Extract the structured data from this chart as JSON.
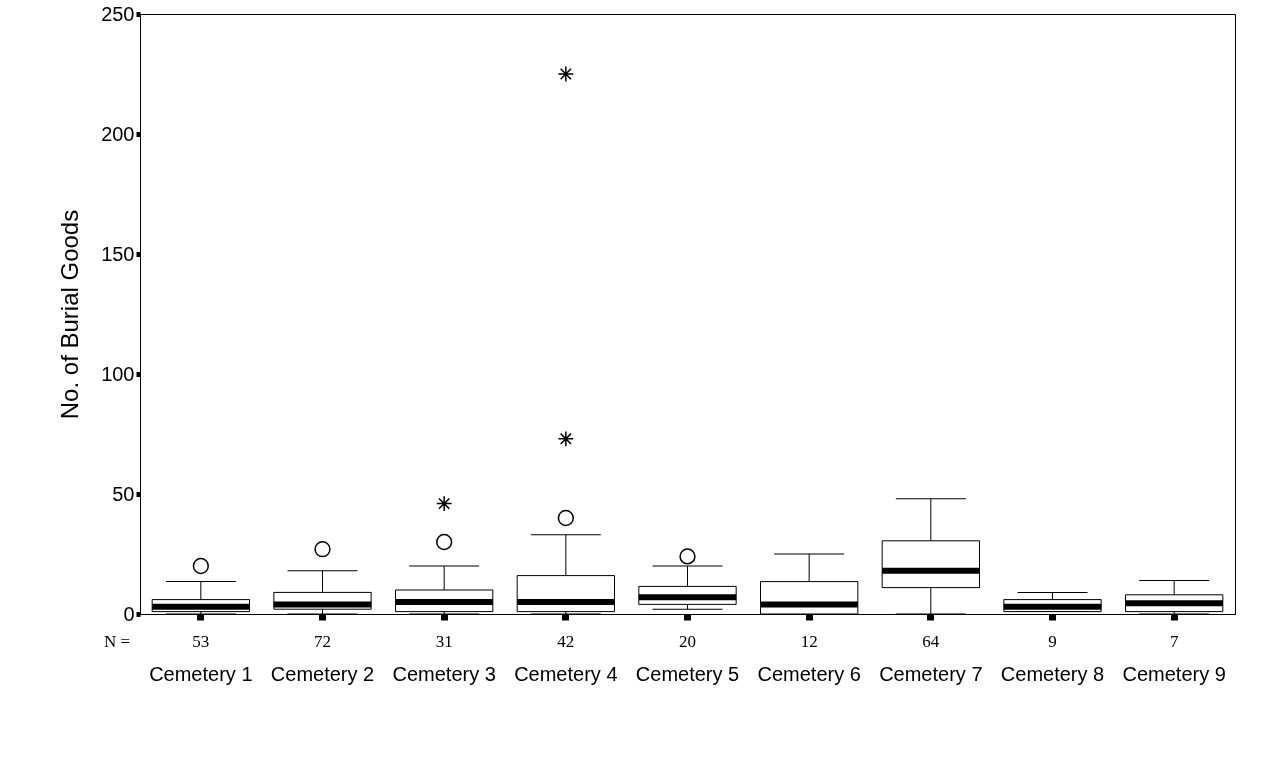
{
  "chart_data": {
    "type": "box",
    "ylabel": "No. of Burial Goods",
    "categories": [
      "Cemetery 1",
      "Cemetery 2",
      "Cemetery 3",
      "Cemetery 4",
      "Cemetery 5",
      "Cemetery 6",
      "Cemetery 7",
      "Cemetery 8",
      "Cemetery 9"
    ],
    "boxes": [
      {
        "low": 0,
        "q1": 1,
        "median": 3,
        "q3": 6,
        "high": 13.5,
        "outliers": [
          20
        ]
      },
      {
        "low": 0,
        "q1": 2,
        "median": 4,
        "q3": 9,
        "high": 18,
        "outliers": [
          27
        ]
      },
      {
        "low": 0,
        "q1": 1,
        "median": 5,
        "q3": 10,
        "high": 20,
        "outliers": [
          30,
          46
        ]
      },
      {
        "low": 0,
        "q1": 1,
        "median": 5,
        "q3": 16,
        "high": 33,
        "outliers": [
          40,
          73,
          225
        ]
      },
      {
        "low": 2,
        "q1": 4,
        "median": 7,
        "q3": 11.5,
        "high": 20,
        "outliers": [
          24
        ]
      },
      {
        "low": 0,
        "q1": 0,
        "median": 4,
        "q3": 13.5,
        "high": 25
      },
      {
        "low": 0,
        "q1": 11,
        "median": 18,
        "q3": 30.5,
        "high": 48
      },
      {
        "low": 1,
        "q1": 1,
        "median": 3,
        "q3": 6,
        "high": 9
      },
      {
        "low": 0,
        "q1": 1,
        "median": 4.5,
        "q3": 8,
        "high": 14
      }
    ],
    "ylim": [
      0,
      250
    ],
    "yticks": [
      0,
      50,
      100,
      150,
      200,
      250
    ],
    "annotations": [
      "N =",
      "53",
      "72",
      "31",
      "42",
      "20",
      "12",
      "64",
      "9",
      "7"
    ]
  }
}
